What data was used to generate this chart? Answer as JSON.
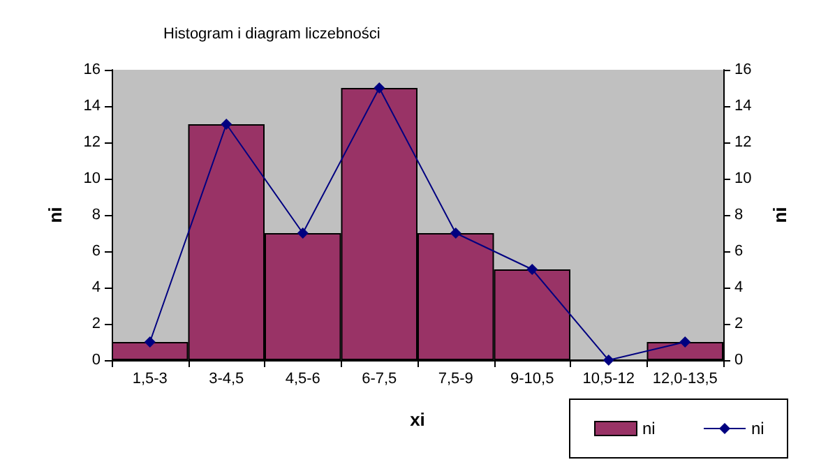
{
  "chart_data": {
    "type": "bar",
    "title": "Histogram i diagram liczebności",
    "xlabel": "xi",
    "ylabel": "ni",
    "y2label": "ni",
    "categories": [
      "1,5-3",
      "3-4,5",
      "4,5-6",
      "6-7,5",
      "7,5-9",
      "9-10,5",
      "10,5-12",
      "12,0-13,5"
    ],
    "series": [
      {
        "name": "ni",
        "color": "#993366",
        "values": [
          1,
          13,
          7,
          15,
          7,
          5,
          0,
          1
        ]
      },
      {
        "name": "ni",
        "type": "line",
        "axis": "y2",
        "color": "#000080",
        "marker": "diamond",
        "values": [
          1,
          13,
          7,
          15,
          7,
          5,
          0,
          1
        ]
      }
    ],
    "ylim": [
      0,
      16
    ],
    "yticks": [
      0,
      2,
      4,
      6,
      8,
      10,
      12,
      14,
      16
    ],
    "y2lim": [
      0,
      16
    ],
    "y2ticks": [
      0,
      2,
      4,
      6,
      8,
      10,
      12,
      14,
      16
    ],
    "grid": false,
    "legend": "bottom right"
  }
}
